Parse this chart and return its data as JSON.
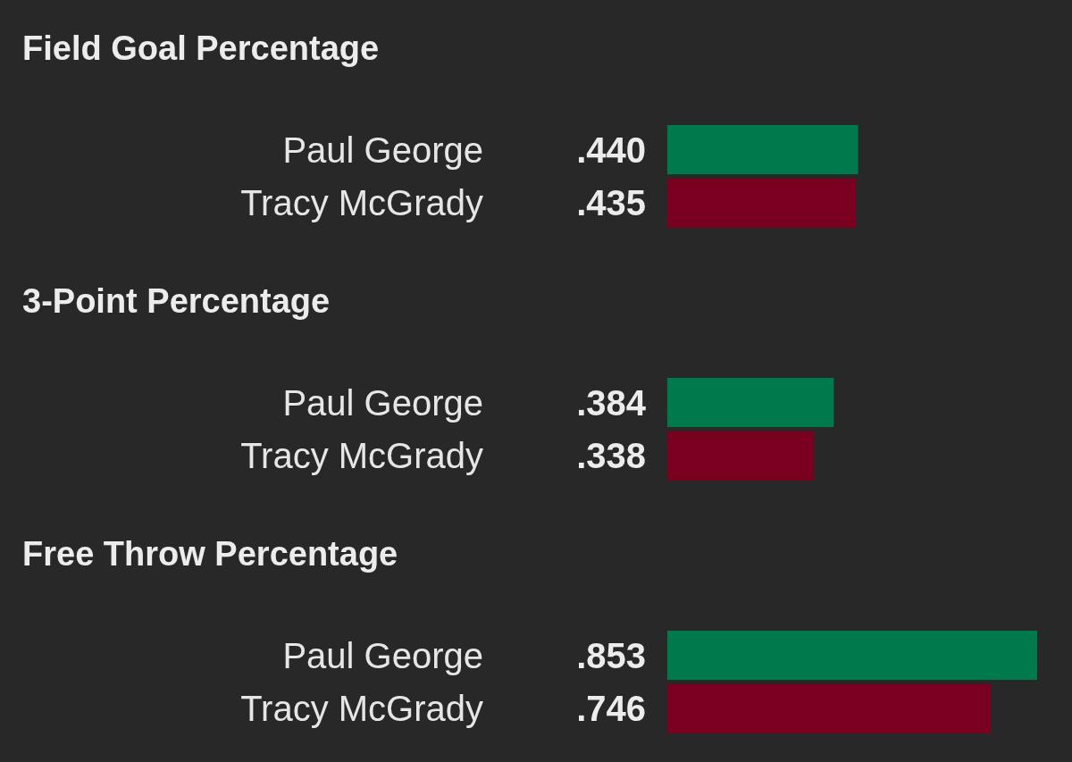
{
  "chart_data": [
    {
      "type": "bar",
      "orientation": "horizontal",
      "title": "Field Goal Percentage",
      "categories": [
        "Paul George",
        "Tracy McGrady"
      ],
      "values": [
        0.44,
        0.435
      ],
      "colors": [
        "#007a4d",
        "#7a0020"
      ],
      "value_labels": [
        ".440",
        ".435"
      ]
    },
    {
      "type": "bar",
      "orientation": "horizontal",
      "title": "3-Point Percentage",
      "categories": [
        "Paul George",
        "Tracy McGrady"
      ],
      "values": [
        0.384,
        0.338
      ],
      "colors": [
        "#007a4d",
        "#7a0020"
      ],
      "value_labels": [
        ".384",
        ".338"
      ]
    },
    {
      "type": "bar",
      "orientation": "horizontal",
      "title": "Free Throw Percentage",
      "categories": [
        "Paul George",
        "Tracy McGrady"
      ],
      "values": [
        0.853,
        0.746
      ],
      "colors": [
        "#007a4d",
        "#7a0020"
      ],
      "value_labels": [
        ".853",
        ".746"
      ]
    }
  ]
}
